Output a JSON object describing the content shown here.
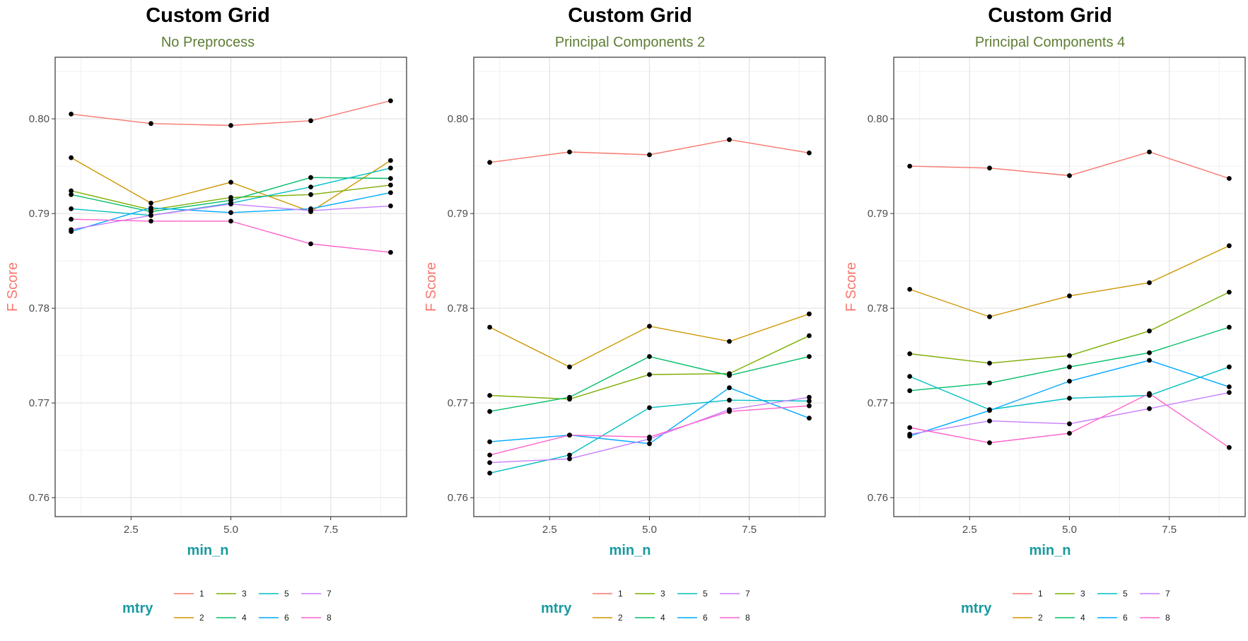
{
  "colors": {
    "title": "#000000",
    "subtitle": "#5e7d33",
    "xlabel": "#1a9aa0",
    "ylabel": "#f8766d",
    "legend_title": "#1a9aa0",
    "series": [
      "#f8766d",
      "#cd9600",
      "#7cae00",
      "#00be67",
      "#00bfc4",
      "#00a9ff",
      "#c77cff",
      "#ff61cc"
    ]
  },
  "legend": {
    "title": "mtry",
    "position": "bottom"
  },
  "chart_data": [
    {
      "type": "line",
      "title": "Custom Grid",
      "subtitle": "No Preprocess",
      "xlabel": "min_n",
      "ylabel": "F Score",
      "x": [
        1,
        3,
        5,
        7,
        9
      ],
      "xlim": [
        0.6,
        9.4
      ],
      "ylim": [
        0.758,
        0.8065
      ],
      "xticks": [
        2.5,
        5.0,
        7.5
      ],
      "xtick_labels": [
        "2.5",
        "5.0",
        "7.5"
      ],
      "yticks": [
        0.76,
        0.77,
        0.78,
        0.79,
        0.8
      ],
      "ytick_labels": [
        "0.76",
        "0.77",
        "0.78",
        "0.79",
        "0.80"
      ],
      "grid": true,
      "series": [
        {
          "name": "1",
          "values": [
            0.8005,
            0.7995,
            0.7993,
            0.7998,
            0.8019
          ]
        },
        {
          "name": "2",
          "values": [
            0.7959,
            0.7911,
            0.7933,
            0.7902,
            0.7956
          ]
        },
        {
          "name": "3",
          "values": [
            0.7924,
            0.7904,
            0.7917,
            0.792,
            0.793
          ]
        },
        {
          "name": "4",
          "values": [
            0.792,
            0.7902,
            0.7914,
            0.7938,
            0.7937
          ]
        },
        {
          "name": "5",
          "values": [
            0.7905,
            0.7898,
            0.7911,
            0.7928,
            0.7948
          ]
        },
        {
          "name": "6",
          "values": [
            0.7881,
            0.7906,
            0.7901,
            0.7905,
            0.7922
          ]
        },
        {
          "name": "7",
          "values": [
            0.7883,
            0.7898,
            0.791,
            0.7903,
            0.7908
          ]
        },
        {
          "name": "8",
          "values": [
            0.7894,
            0.7892,
            0.7892,
            0.7868,
            0.7859
          ]
        }
      ]
    },
    {
      "type": "line",
      "title": "Custom Grid",
      "subtitle": "Principal Components 2",
      "xlabel": "min_n",
      "ylabel": "F Score",
      "x": [
        1,
        3,
        5,
        7,
        9
      ],
      "xlim": [
        0.6,
        9.4
      ],
      "ylim": [
        0.758,
        0.8065
      ],
      "xticks": [
        2.5,
        5.0,
        7.5
      ],
      "xtick_labels": [
        "2.5",
        "5.0",
        "7.5"
      ],
      "yticks": [
        0.76,
        0.77,
        0.78,
        0.79,
        0.8
      ],
      "ytick_labels": [
        "0.76",
        "0.77",
        "0.78",
        "0.79",
        "0.80"
      ],
      "grid": true,
      "series": [
        {
          "name": "1",
          "values": [
            0.7954,
            0.7965,
            0.7962,
            0.7978,
            0.7964
          ]
        },
        {
          "name": "2",
          "values": [
            0.778,
            0.7738,
            0.7781,
            0.7765,
            0.7794
          ]
        },
        {
          "name": "3",
          "values": [
            0.7708,
            0.7704,
            0.773,
            0.7731,
            0.7771
          ]
        },
        {
          "name": "4",
          "values": [
            0.7691,
            0.7706,
            0.7749,
            0.7729,
            0.7749
          ]
        },
        {
          "name": "5",
          "values": [
            0.7626,
            0.7645,
            0.7695,
            0.7703,
            0.7702
          ]
        },
        {
          "name": "6",
          "values": [
            0.7659,
            0.7666,
            0.7657,
            0.7716,
            0.7684
          ]
        },
        {
          "name": "7",
          "values": [
            0.7637,
            0.7641,
            0.7662,
            0.7693,
            0.7706
          ]
        },
        {
          "name": "8",
          "values": [
            0.7645,
            0.7666,
            0.7664,
            0.7691,
            0.7697
          ]
        }
      ]
    },
    {
      "type": "line",
      "title": "Custom Grid",
      "subtitle": "Principal Components 4",
      "xlabel": "min_n",
      "ylabel": "F Score",
      "x": [
        1,
        3,
        5,
        7,
        9
      ],
      "xlim": [
        0.6,
        9.4
      ],
      "ylim": [
        0.758,
        0.8065
      ],
      "xticks": [
        2.5,
        5.0,
        7.5
      ],
      "xtick_labels": [
        "2.5",
        "5.0",
        "7.5"
      ],
      "yticks": [
        0.76,
        0.77,
        0.78,
        0.79,
        0.8
      ],
      "ytick_labels": [
        "0.76",
        "0.77",
        "0.78",
        "0.79",
        "0.80"
      ],
      "grid": true,
      "series": [
        {
          "name": "1",
          "values": [
            0.795,
            0.7948,
            0.794,
            0.7965,
            0.7937
          ]
        },
        {
          "name": "2",
          "values": [
            0.782,
            0.7791,
            0.7813,
            0.7827,
            0.7866
          ]
        },
        {
          "name": "3",
          "values": [
            0.7752,
            0.7742,
            0.775,
            0.7776,
            0.7817
          ]
        },
        {
          "name": "4",
          "values": [
            0.7713,
            0.7721,
            0.7738,
            0.7753,
            0.778
          ]
        },
        {
          "name": "5",
          "values": [
            0.7728,
            0.7693,
            0.7705,
            0.7708,
            0.7738
          ]
        },
        {
          "name": "6",
          "values": [
            0.7665,
            0.7692,
            0.7723,
            0.7745,
            0.7717
          ]
        },
        {
          "name": "7",
          "values": [
            0.7667,
            0.7681,
            0.7678,
            0.7694,
            0.7711
          ]
        },
        {
          "name": "8",
          "values": [
            0.7674,
            0.7658,
            0.7668,
            0.771,
            0.7653
          ]
        }
      ]
    }
  ]
}
